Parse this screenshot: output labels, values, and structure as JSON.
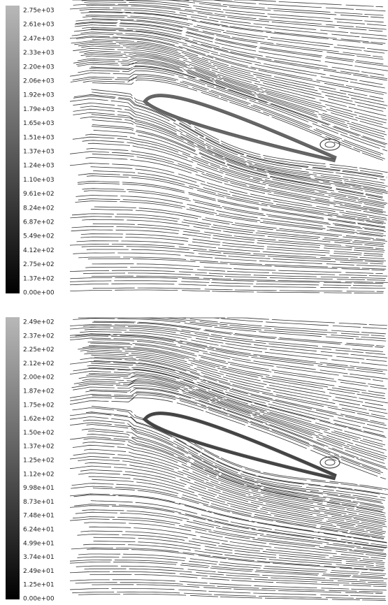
{
  "panels": [
    {
      "colorbar_labels": [
        "2.75e+03",
        "2.61e+03",
        "2.47e+03",
        "2.33e+03",
        "2.20e+03",
        "2.06e+03",
        "1.92e+03",
        "1.79e+03",
        "1.65e+03",
        "1.51e+03",
        "1.37e+03",
        "1.24e+03",
        "1.10e+03",
        "9.61e+02",
        "8.24e+02",
        "6.87e+02",
        "5.49e+02",
        "4.12e+02",
        "2.75e+02",
        "1.37e+02",
        "0.00e+00"
      ]
    },
    {
      "colorbar_labels": [
        "2.49e+02",
        "2.37e+02",
        "2.25e+02",
        "2.12e+02",
        "2.00e+02",
        "1.87e+02",
        "1.75e+02",
        "1.62e+02",
        "1.50e+02",
        "1.37e+02",
        "1.25e+02",
        "1.12e+02",
        "9.98e+01",
        "8.73e+01",
        "7.48e+01",
        "6.24e+01",
        "4.99e+01",
        "3.74e+01",
        "2.49e+01",
        "1.25e+01",
        "0.00e+00"
      ]
    }
  ]
}
